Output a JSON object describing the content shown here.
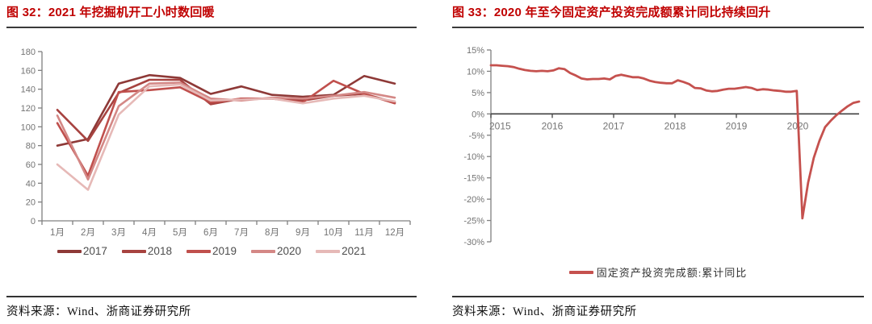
{
  "figures": [
    {
      "title": "图 32：2021 年挖掘机开工小时数回暖",
      "source": "资料来源：Wind、浙商证券研究所"
    },
    {
      "title": "图 33：2020 年至今固定资产投资完成额累计同比持续回升",
      "source": "资料来源：Wind、浙商证券研究所"
    }
  ],
  "colors": {
    "title_red": "#c00000",
    "axis_gray": "#808080",
    "tick_text": "#737373",
    "legend_text": "#4d4d4d",
    "zero_axis": "#404040",
    "rule_dark": "#3a3a3a"
  },
  "chart_data": [
    {
      "type": "line",
      "title": "2021年挖掘机开工小时数回暖",
      "categories": [
        "1月",
        "2月",
        "3月",
        "4月",
        "5月",
        "6月",
        "7月",
        "8月",
        "9月",
        "10月",
        "11月",
        "12月"
      ],
      "ylim": [
        0,
        180
      ],
      "ytick_step": 20,
      "grid": false,
      "legend_position": "bottom",
      "series": [
        {
          "name": "2017",
          "color": "#8e3937",
          "values": [
            80,
            87,
            146,
            155,
            152,
            135,
            143,
            134,
            132,
            134,
            154,
            146
          ]
        },
        {
          "name": "2018",
          "color": "#a74340",
          "values": [
            118,
            85,
            136,
            150,
            150,
            124,
            130,
            130,
            128,
            133,
            135,
            126
          ]
        },
        {
          "name": "2019",
          "color": "#c0504d",
          "values": [
            104,
            48,
            137,
            139,
            142,
            126,
            130,
            130,
            126,
            149,
            135,
            125
          ]
        },
        {
          "name": "2020",
          "color": "#d48886",
          "values": [
            112,
            44,
            122,
            146,
            147,
            130,
            128,
            131,
            130,
            133,
            137,
            131
          ]
        },
        {
          "name": "2021",
          "color": "#e6b9b7",
          "values": [
            60,
            33,
            113,
            143,
            145,
            128,
            129,
            130,
            125,
            130,
            133,
            127
          ]
        }
      ]
    },
    {
      "type": "line",
      "title": "2020年至今固定资产投资完成额累计同比持续回升",
      "x_tick_labels": [
        "2015",
        "2016",
        "2017",
        "2018",
        "2019",
        "2020"
      ],
      "ylim": [
        -30,
        15
      ],
      "ytick_step": 5,
      "y_unit": "%",
      "grid": false,
      "legend_position": "bottom",
      "series": [
        {
          "name": "固定资产投资完成额:累计同比",
          "color": "#c5514e",
          "x_start": "2015-02",
          "x_end": "2020-12",
          "values": [
            11.4,
            11.4,
            11.3,
            11.2,
            11.0,
            10.6,
            10.3,
            10.1,
            10.0,
            10.1,
            10.0,
            10.2,
            10.7,
            10.5,
            9.6,
            9.0,
            8.3,
            8.1,
            8.2,
            8.2,
            8.3,
            8.1,
            8.9,
            9.2,
            8.9,
            8.6,
            8.6,
            8.3,
            7.8,
            7.5,
            7.3,
            7.2,
            7.2,
            7.9,
            7.5,
            7.0,
            6.1,
            6.0,
            5.5,
            5.3,
            5.4,
            5.7,
            5.9,
            5.9,
            6.1,
            6.3,
            6.1,
            5.6,
            5.8,
            5.7,
            5.5,
            5.4,
            5.2,
            5.2,
            5.4,
            -24.5,
            -16.1,
            -10.3,
            -6.3,
            -3.1,
            -1.6,
            -0.3,
            0.8,
            1.8,
            2.6,
            2.9
          ]
        }
      ]
    }
  ]
}
